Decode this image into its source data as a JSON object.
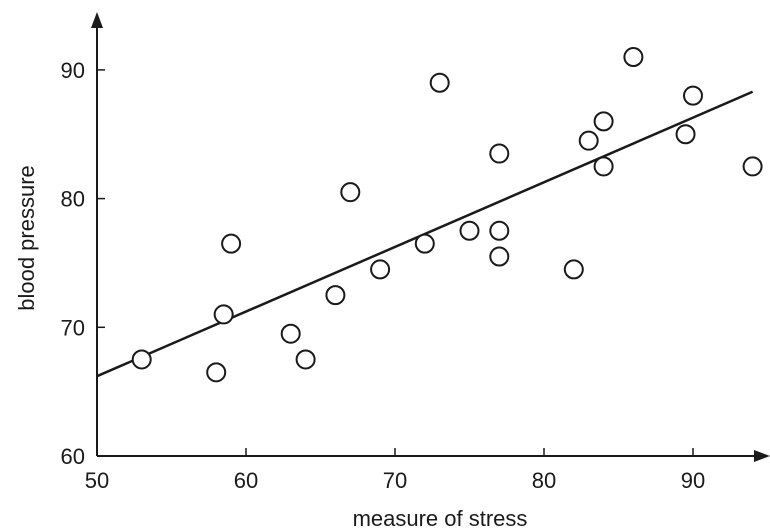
{
  "chart_data": {
    "type": "scatter",
    "title": "",
    "xlabel": "measure of stress",
    "ylabel": "blood pressure",
    "xlim": [
      50,
      94
    ],
    "ylim": [
      60,
      93
    ],
    "x_ticks": [
      50,
      60,
      70,
      80,
      90
    ],
    "y_ticks": [
      60,
      70,
      80,
      90
    ],
    "x_tick_labels": [
      "50",
      "60",
      "70",
      "80",
      "90"
    ],
    "y_tick_labels": [
      "60",
      "70",
      "80",
      "90"
    ],
    "grid": false,
    "legend": "none",
    "point_color": "#1a1a1a",
    "point_fill": "#ffffff",
    "line_color": "#1a1a1a",
    "points": [
      {
        "x": 53,
        "y": 67.5
      },
      {
        "x": 58,
        "y": 66.5
      },
      {
        "x": 58.5,
        "y": 71
      },
      {
        "x": 59,
        "y": 76.5
      },
      {
        "x": 63,
        "y": 69.5
      },
      {
        "x": 64,
        "y": 67.5
      },
      {
        "x": 66,
        "y": 72.5
      },
      {
        "x": 67,
        "y": 80.5
      },
      {
        "x": 69,
        "y": 74.5
      },
      {
        "x": 72,
        "y": 76.5
      },
      {
        "x": 73,
        "y": 89
      },
      {
        "x": 75,
        "y": 77.5
      },
      {
        "x": 77,
        "y": 83.5
      },
      {
        "x": 77,
        "y": 77.5
      },
      {
        "x": 77,
        "y": 75.5
      },
      {
        "x": 82,
        "y": 74.5
      },
      {
        "x": 83,
        "y": 84.5
      },
      {
        "x": 84,
        "y": 86
      },
      {
        "x": 84,
        "y": 82.5
      },
      {
        "x": 86,
        "y": 91
      },
      {
        "x": 89.5,
        "y": 85
      },
      {
        "x": 90,
        "y": 88
      },
      {
        "x": 94,
        "y": 82.5
      }
    ],
    "trendline": {
      "x": [
        50,
        94
      ],
      "y": [
        66.2,
        88.3
      ]
    }
  }
}
